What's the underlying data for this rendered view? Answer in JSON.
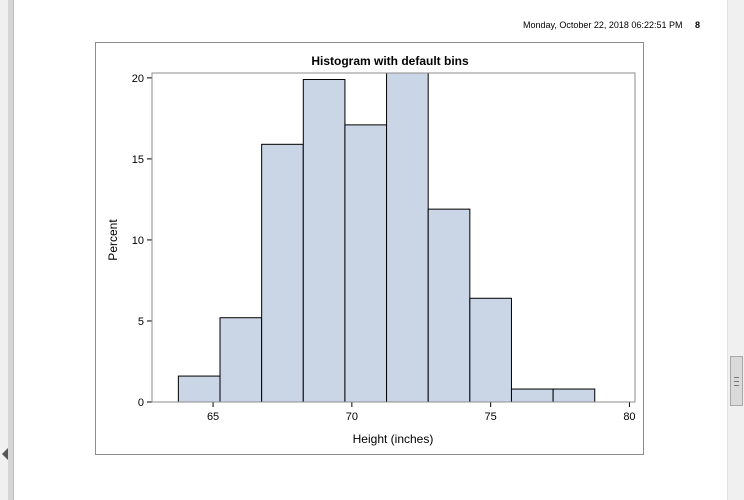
{
  "header": {
    "timestamp": "Monday, October 22, 2018 06:22:51 PM",
    "page_number": "8"
  },
  "chart_data": {
    "type": "bar",
    "title": "Histogram with default bins",
    "xlabel": "Height (inches)",
    "ylabel": "Percent",
    "bin_width": 1.5,
    "bins": [
      {
        "start": 63.75,
        "end": 65.25,
        "value": 1.6
      },
      {
        "start": 65.25,
        "end": 66.75,
        "value": 5.2
      },
      {
        "start": 66.75,
        "end": 68.25,
        "value": 15.9
      },
      {
        "start": 68.25,
        "end": 69.75,
        "value": 19.9
      },
      {
        "start": 69.75,
        "end": 71.25,
        "value": 17.1
      },
      {
        "start": 71.25,
        "end": 72.75,
        "value": 20.3
      },
      {
        "start": 72.75,
        "end": 74.25,
        "value": 11.9
      },
      {
        "start": 74.25,
        "end": 75.75,
        "value": 6.4
      },
      {
        "start": 75.75,
        "end": 77.25,
        "value": 0.8
      },
      {
        "start": 77.25,
        "end": 78.75,
        "value": 0.8
      }
    ],
    "xlim": [
      62.8,
      80.2
    ],
    "ylim": [
      0,
      20.3
    ],
    "xticks": [
      65,
      70,
      75,
      80
    ],
    "yticks": [
      0,
      5,
      10,
      15,
      20
    ],
    "grid": false,
    "colors": {
      "bar_fill": "#cad5e5",
      "bar_stroke": "#000000",
      "frame": "#8c8c8c"
    }
  }
}
